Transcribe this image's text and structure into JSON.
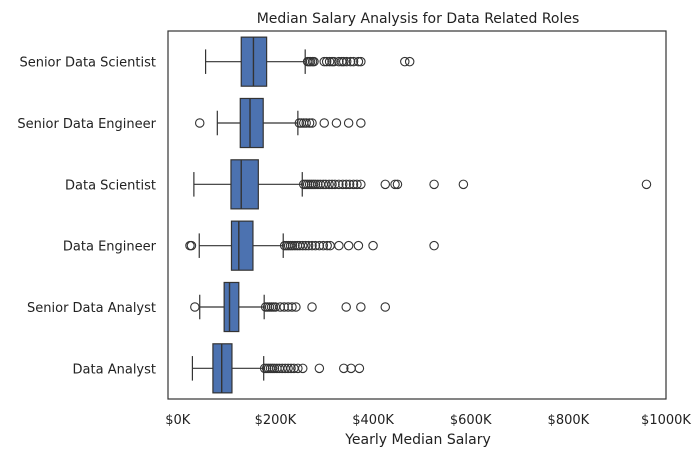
{
  "chart_data": {
    "type": "box",
    "orientation": "horizontal",
    "title": "Median Salary Analysis for Data Related Roles",
    "xlabel": "Yearly Median Salary",
    "ylabel": "",
    "xlim": [
      -20000,
      1000000
    ],
    "x_ticks": [
      0,
      200000,
      400000,
      600000,
      800000,
      1000000
    ],
    "x_tick_labels": [
      "$0K",
      "$200K",
      "$400K",
      "$600K",
      "$800K",
      "$1000K"
    ],
    "grid": false,
    "box_color": "#4c72b0",
    "line_color": "#333333",
    "categories": [
      "Senior Data Scientist",
      "Senior Data Engineer",
      "Data Scientist",
      "Data Engineer",
      "Senior Data Analyst",
      "Data Analyst"
    ],
    "boxes": [
      {
        "label": "Senior Data Scientist",
        "whisker_low": 57000,
        "q1": 130000,
        "median": 155000,
        "q3": 182000,
        "whisker_high": 261000,
        "outliers": [
          266000,
          269000,
          272000,
          276000,
          279000,
          300000,
          305000,
          311000,
          316000,
          320000,
          330000,
          336000,
          340000,
          346000,
          354000,
          360000,
          370000,
          375000,
          465000,
          475000
        ]
      },
      {
        "label": "Senior Data Engineer",
        "whisker_low": 81000,
        "q1": 128000,
        "median": 148000,
        "q3": 175000,
        "whisker_high": 246000,
        "outliers": [
          45000,
          249000,
          253000,
          258000,
          263000,
          270000,
          275000,
          300000,
          325000,
          350000,
          375000
        ]
      },
      {
        "label": "Data Scientist",
        "whisker_low": 33000,
        "q1": 109000,
        "median": 130000,
        "q3": 165000,
        "whisker_high": 255000,
        "outliers": [
          258000,
          262000,
          266000,
          270000,
          274000,
          278000,
          282000,
          287000,
          292000,
          298000,
          303000,
          310000,
          316000,
          322000,
          330000,
          338000,
          345000,
          352000,
          360000,
          367000,
          375000,
          425000,
          445000,
          450000,
          525000,
          585000,
          960000
        ]
      },
      {
        "label": "Data Engineer",
        "whisker_low": 44000,
        "q1": 110000,
        "median": 125000,
        "q3": 154000,
        "whisker_high": 216000,
        "outliers": [
          25000,
          28000,
          219000,
          223000,
          227000,
          231000,
          235000,
          240000,
          245000,
          250000,
          256000,
          262000,
          268000,
          275000,
          282000,
          290000,
          298000,
          306000,
          312000,
          330000,
          350000,
          370000,
          400000,
          525000
        ]
      },
      {
        "label": "Senior Data Analyst",
        "whisker_low": 45000,
        "q1": 95000,
        "median": 106000,
        "q3": 125000,
        "whisker_high": 177000,
        "outliers": [
          35000,
          180000,
          184000,
          188000,
          192000,
          196000,
          200000,
          210000,
          218000,
          226000,
          234000,
          242000,
          275000,
          345000,
          375000,
          425000
        ]
      },
      {
        "label": "Data Analyst",
        "whisker_low": 30000,
        "q1": 72000,
        "median": 90000,
        "q3": 111000,
        "whisker_high": 176000,
        "outliers": [
          178000,
          182000,
          186000,
          190000,
          194000,
          198000,
          203000,
          208000,
          214000,
          220000,
          226000,
          232000,
          238000,
          246000,
          256000,
          290000,
          340000,
          355000,
          372000
        ]
      }
    ]
  }
}
